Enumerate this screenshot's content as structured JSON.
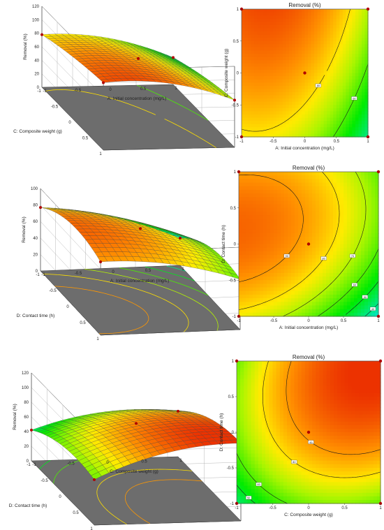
{
  "chart_data": [
    {
      "type": "surface3d",
      "zlabel": "Removal (%)",
      "xlabel": "A: Initial concentration (mg/L)",
      "ylabel": "C: Composite weight (g)",
      "zticks": [
        "0",
        "20",
        "40",
        "60",
        "80",
        "100",
        "120"
      ],
      "xticks": [
        "-1",
        "-0.5",
        "0",
        "0.5",
        "1"
      ],
      "yticks": [
        "-1",
        "-0.5",
        "0",
        "0.5",
        "1"
      ],
      "zlim": [
        0,
        120
      ],
      "surface": {
        "b0": 87,
        "b1": -17,
        "b2": 13,
        "b11": -12,
        "b22": -3,
        "b12": 2
      },
      "color_range": [
        10,
        105
      ]
    },
    {
      "type": "contour",
      "title": "Removal (%)",
      "xlabel": "A: Initial concentration (mg/L)",
      "ylabel": "C: Composite weight (g)",
      "xticks": [
        "-1",
        "-0.5",
        "0",
        "0.5",
        "1"
      ],
      "yticks": [
        "-1",
        "-0.5",
        "0",
        "0.5",
        "1"
      ],
      "surface": {
        "b0": 87,
        "b1": -17,
        "b2": 13,
        "b11": -12,
        "b22": -3,
        "b12": 2
      },
      "color_range": [
        10,
        105
      ],
      "contour_levels": [
        40,
        60,
        80
      ],
      "contour_labels": [
        "40",
        "60",
        "80"
      ],
      "design_points": [
        [
          -1,
          -1
        ],
        [
          -1,
          1
        ],
        [
          1,
          -1
        ],
        [
          1,
          1
        ],
        [
          0,
          0
        ]
      ]
    },
    {
      "type": "surface3d",
      "zlabel": "Removal (%)",
      "xlabel": "A: Initial concentration (mg/L)",
      "ylabel": "D: Contact time (h)",
      "zticks": [
        "0",
        "20",
        "40",
        "60",
        "80",
        "100"
      ],
      "xticks": [
        "-1",
        "-0.5",
        "0",
        "0.5",
        "1"
      ],
      "yticks": [
        "-1",
        "-0.5",
        "0",
        "0.5",
        "1"
      ],
      "zlim": [
        0,
        100
      ],
      "surface": {
        "b0": 87,
        "b1": -18,
        "b2": 10,
        "b11": -8,
        "b22": -14,
        "b12": 4
      },
      "color_range": [
        10,
        105
      ],
      "contour_levels": [
        40,
        50,
        60,
        70,
        80,
        90
      ],
      "contour_labels": [
        "40",
        "50",
        "60",
        "70",
        "80",
        "90"
      ],
      "design_points": [
        [
          -1,
          -1
        ],
        [
          -1,
          1
        ],
        [
          1,
          -1
        ],
        [
          1,
          1
        ],
        [
          0,
          0
        ]
      ]
    },
    {
      "type": "contour",
      "title": "Removal (%)",
      "xlabel": "A: Initial concentration (mg/L)",
      "ylabel": "D: Contact time (h)",
      "xticks": [
        "-1",
        "-0.5",
        "0",
        "0.5",
        "1"
      ],
      "yticks": [
        "-1",
        "-0.5",
        "0",
        "0.5",
        "1"
      ],
      "surface": {
        "b0": 87,
        "b1": -18,
        "b2": 10,
        "b11": -8,
        "b22": -14,
        "b12": 4
      },
      "color_range": [
        10,
        105
      ],
      "contour_levels": [
        40,
        50,
        60,
        70,
        80,
        90
      ],
      "contour_labels": [
        "40",
        "50",
        "60",
        "70",
        "80",
        "90"
      ],
      "design_points": [
        [
          -1,
          -1
        ],
        [
          -1,
          1
        ],
        [
          1,
          -1
        ],
        [
          1,
          1
        ],
        [
          0,
          0
        ]
      ]
    },
    {
      "type": "surface3d",
      "zlabel": "Removal (%)",
      "xlabel": "C: Composite weight (g)",
      "ylabel": "D: Contact time (h)",
      "zticks": [
        "0",
        "20",
        "40",
        "60",
        "80",
        "100",
        "120"
      ],
      "xticks": [
        "-1",
        "-0.5",
        "0",
        "0.5",
        "1"
      ],
      "yticks": [
        "-1",
        "-0.5",
        "0",
        "0.5",
        "1"
      ],
      "zlim": [
        0,
        120
      ],
      "surface": {
        "b0": 92,
        "b1": 16,
        "b2": 16,
        "b11": -12,
        "b22": -12,
        "b12": 6
      },
      "color_range": [
        10,
        105
      ],
      "contour_levels": [
        30,
        40,
        50,
        60,
        80,
        90
      ],
      "contour_labels": [
        "30",
        "40",
        "50",
        "60",
        "80",
        "90"
      ],
      "design_points": [
        [
          -1,
          -1
        ],
        [
          -1,
          1
        ],
        [
          1,
          -1
        ],
        [
          1,
          1
        ],
        [
          0,
          0
        ]
      ]
    },
    {
      "type": "contour",
      "title": "Removal (%)",
      "xlabel": "C: Composite weight (g)",
      "ylabel": "D: Contact time (h)",
      "xticks": [
        "-1",
        "-0.5",
        "0",
        "0.5",
        "1"
      ],
      "yticks": [
        "-1",
        "-0.5",
        "0",
        "0.5",
        "1"
      ],
      "surface": {
        "b0": 92,
        "b1": 16,
        "b2": 16,
        "b11": -12,
        "b22": -12,
        "b12": 6
      },
      "color_range": [
        10,
        105
      ],
      "contour_levels": [
        30,
        40,
        50,
        60,
        80,
        90
      ],
      "contour_labels": [
        "30",
        "40",
        "50",
        "60",
        "80",
        "90"
      ],
      "design_points": [
        [
          -1,
          -1
        ],
        [
          -1,
          1
        ],
        [
          1,
          -1
        ],
        [
          1,
          1
        ],
        [
          0,
          0
        ]
      ]
    }
  ]
}
